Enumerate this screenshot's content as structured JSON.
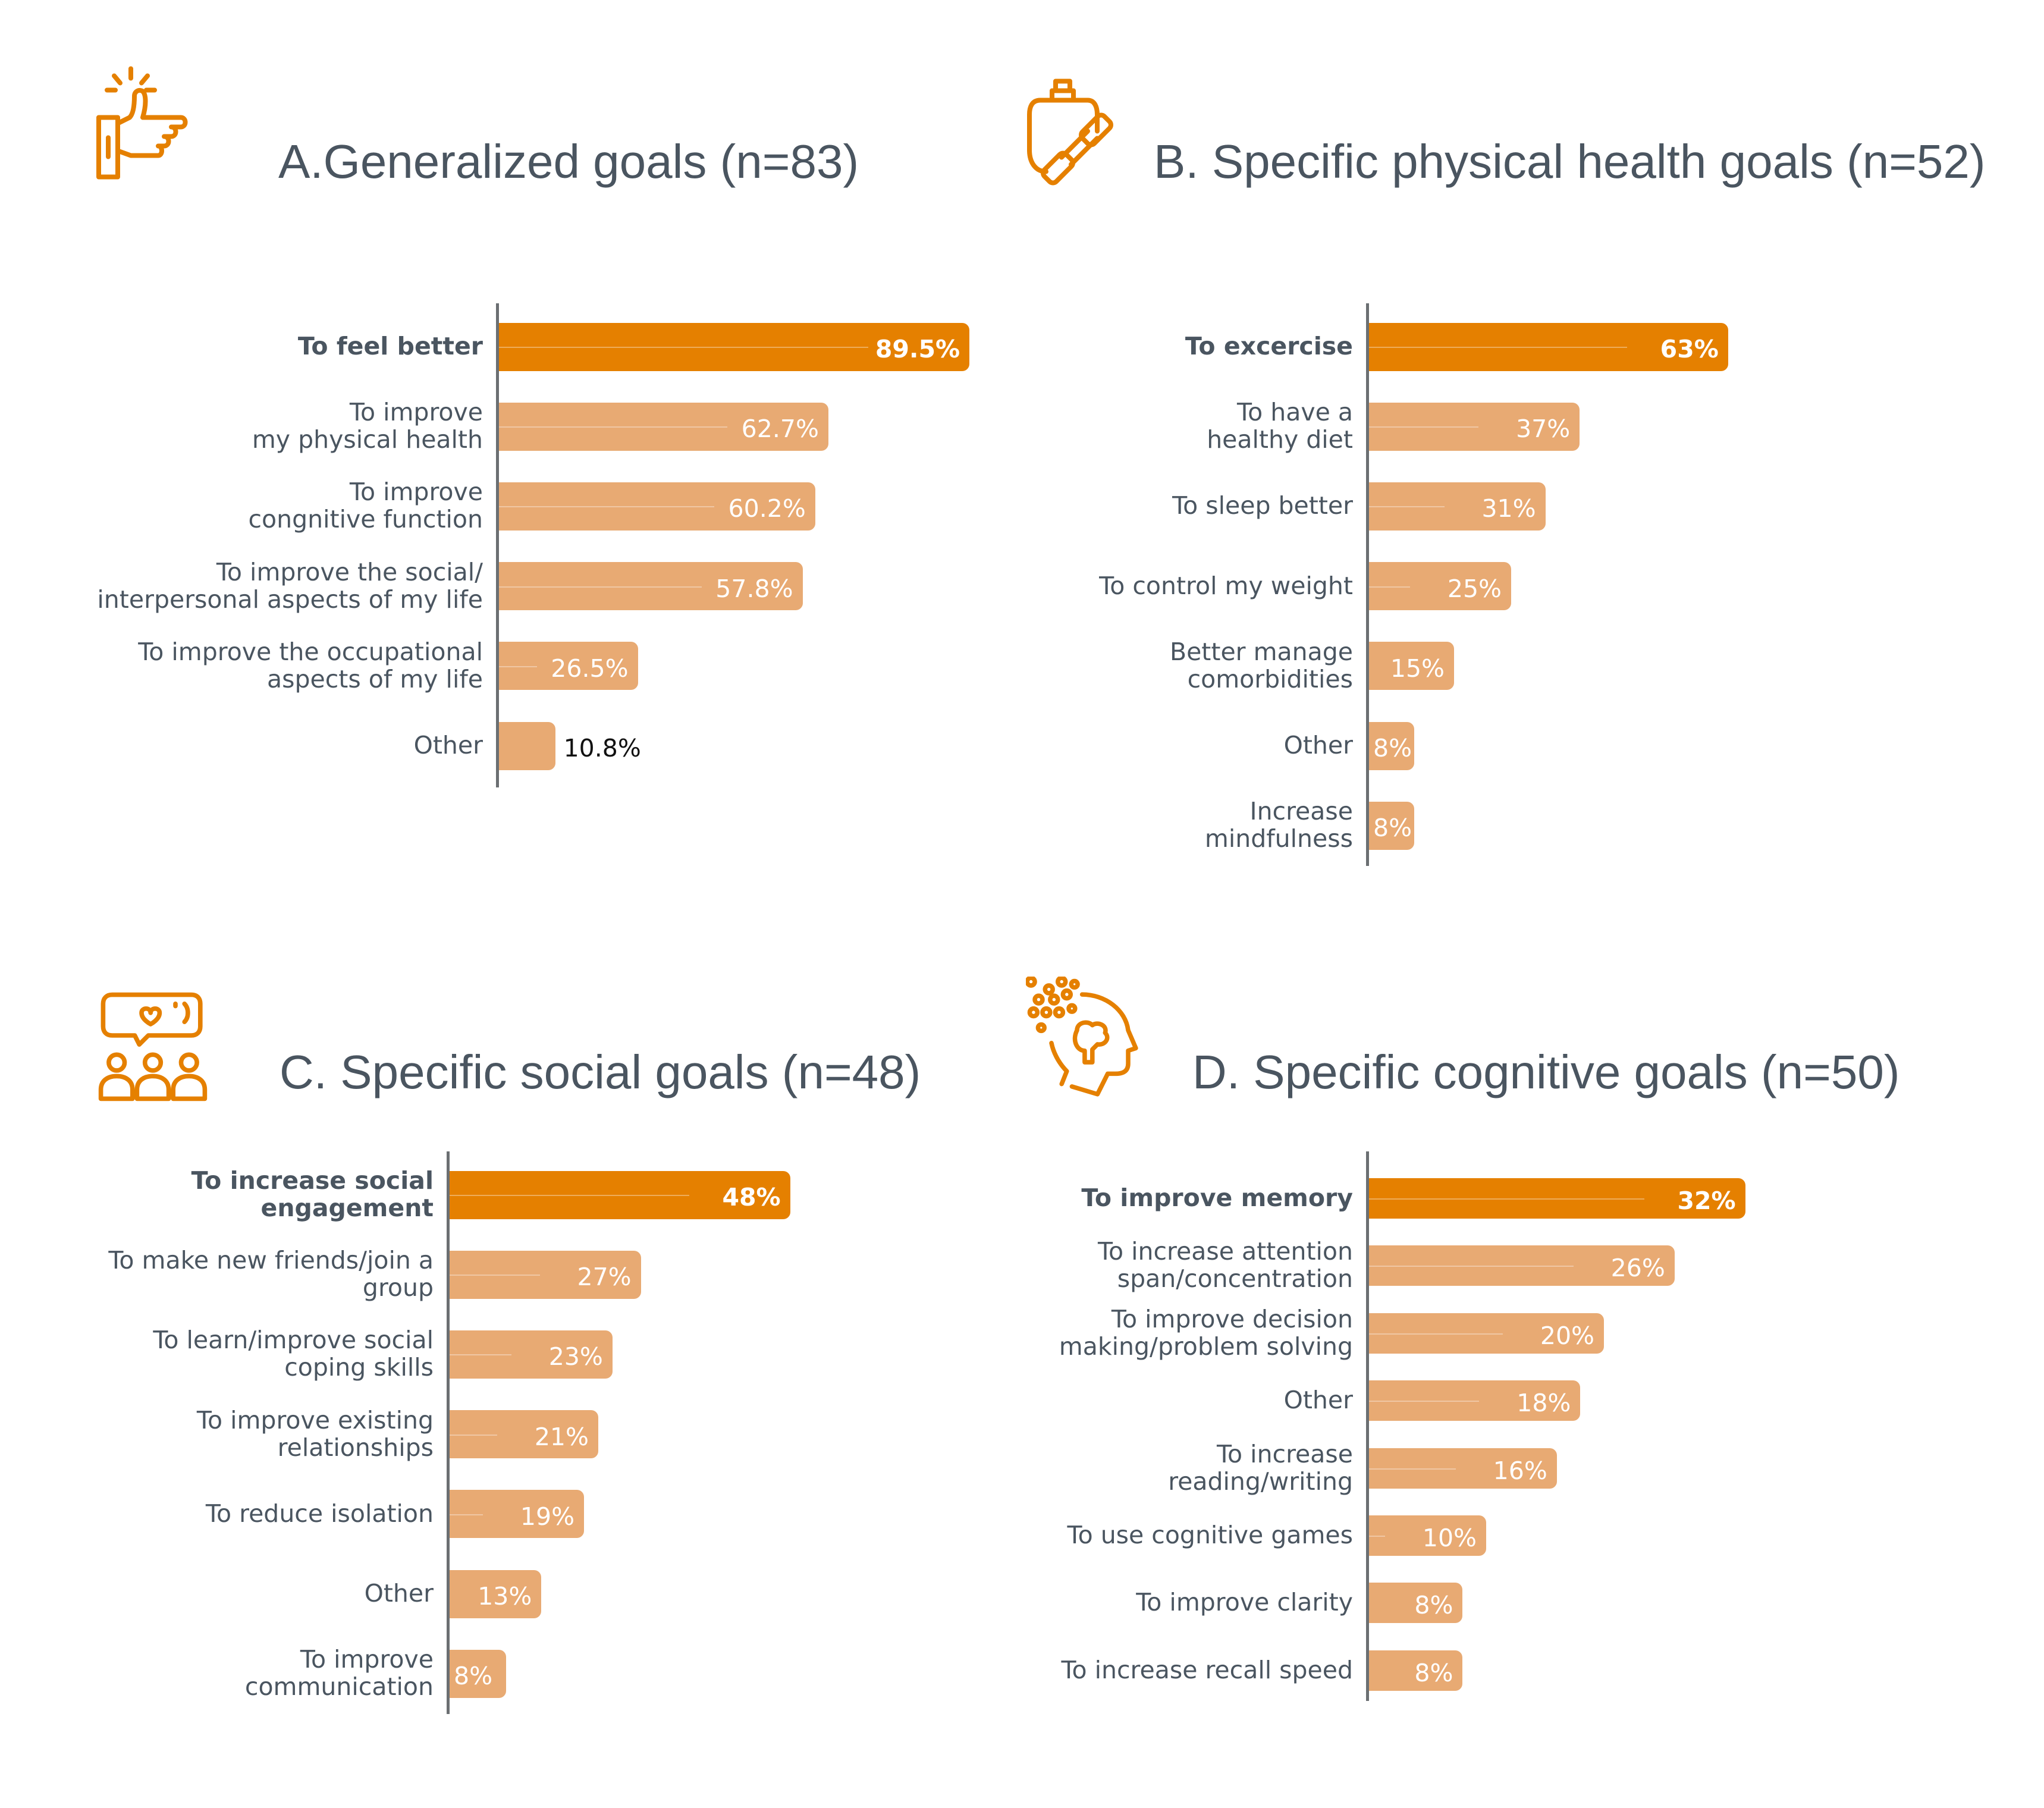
{
  "colors": {
    "highlight": "#E58000",
    "bar": "#E8AA73",
    "title": "#4A5560",
    "icon": "#E58000"
  },
  "chart_data": [
    {
      "type": "bar",
      "orientation": "horizontal",
      "icon": "thumbs-up-icon",
      "title": "A.Generalized goals (n=83)",
      "categories": [
        "To feel better",
        "To improve\nmy physical health",
        "To improve\ncongnitive function",
        "To improve the social/\ninterpersonal aspects of my life",
        "To improve the occupational\naspects of my life",
        "Other"
      ],
      "values": [
        89.5,
        62.7,
        60.2,
        57.8,
        26.5,
        10.8
      ],
      "value_labels": [
        "89.5%",
        "62.7%",
        "60.2%",
        "57.8%",
        "26.5%",
        "10.8%"
      ],
      "highlight_index": 0,
      "xlim": [
        0,
        100
      ]
    },
    {
      "type": "bar",
      "orientation": "horizontal",
      "icon": "water-bottle-dumbbell-icon",
      "title": "B. Specific physical health goals (n=52)",
      "categories": [
        "To excercise",
        "To have a\nhealthy diet",
        "To sleep better",
        "To control my weight",
        "Better manage\ncomorbidities",
        "Other",
        "Increase\nmindfulness"
      ],
      "values": [
        63,
        37,
        31,
        25,
        15,
        8,
        8
      ],
      "value_labels": [
        "63%",
        "37%",
        "31%",
        "25%",
        "15%",
        "8%",
        "8%"
      ],
      "highlight_index": 0,
      "xlim": [
        0,
        100
      ]
    },
    {
      "type": "bar",
      "orientation": "horizontal",
      "icon": "group-chat-heart-icon",
      "title": "C. Specific social goals (n=48)",
      "categories": [
        "To increase social\nengagement",
        "To make new friends/join a\ngroup",
        "To learn/improve social\ncoping skills",
        "To improve existing\nrelationships",
        "To reduce isolation",
        "Other",
        "To improve\ncommunication"
      ],
      "values": [
        48,
        27,
        23,
        21,
        19,
        13,
        8
      ],
      "value_labels": [
        "48%",
        "27%",
        "23%",
        "21%",
        "19%",
        "13%",
        "8%"
      ],
      "highlight_index": 0,
      "xlim": [
        0,
        100
      ]
    },
    {
      "type": "bar",
      "orientation": "horizontal",
      "icon": "head-brain-icon",
      "title": "D. Specific cognitive goals (n=50)",
      "categories": [
        "To improve memory",
        "To increase attention\nspan/concentration",
        "To improve decision\nmaking/problem solving",
        "Other",
        "To increase\nreading/writing",
        "To use cognitive games",
        "To improve clarity",
        "To increase recall speed"
      ],
      "values": [
        32,
        26,
        20,
        18,
        16,
        10,
        8,
        8
      ],
      "value_labels": [
        "32%",
        "26%",
        "20%",
        "18%",
        "16%",
        "10%",
        "8%",
        "8%"
      ],
      "highlight_index": 0,
      "xlim": [
        0,
        100
      ]
    }
  ]
}
